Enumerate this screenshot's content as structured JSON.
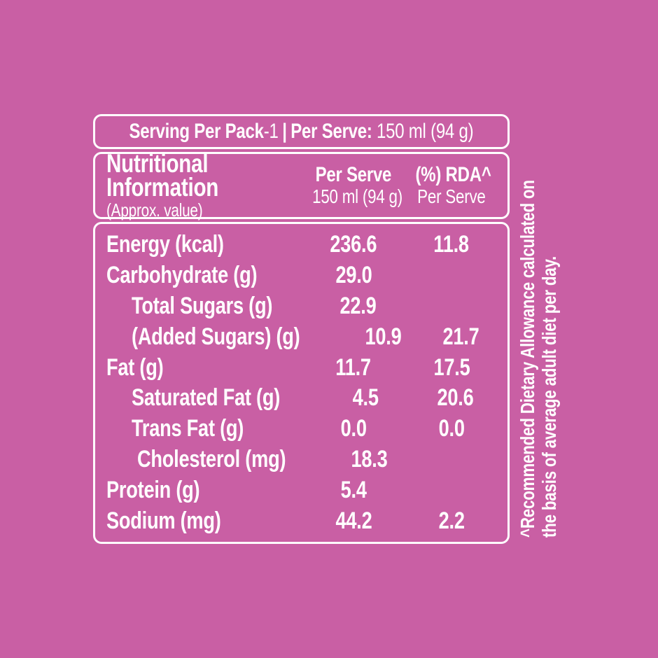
{
  "colors": {
    "background": "#c95fa4",
    "text": "#ffffff",
    "border": "#ffffff"
  },
  "banner": {
    "pack_label": "Serving Per Pack",
    "pack_value": "-1",
    "separator": "|",
    "serve_label": "Per Serve:",
    "serve_value": "150 ml (94 g)"
  },
  "header": {
    "title_line1": "Nutritional",
    "title_line2": "Information",
    "subtitle": "(Approx. value)",
    "per_serve_line1": "Per Serve",
    "per_serve_line2": "150 ml (94 g)",
    "rda_line1": "(%) RDA^",
    "rda_line2": "Per Serve"
  },
  "rows": [
    {
      "label": "Energy (kcal)",
      "per_serve": "236.6",
      "rda": "11.8",
      "indent": 0
    },
    {
      "label": "Carbohydrate (g)",
      "per_serve": "29.0",
      "rda": "",
      "indent": 0
    },
    {
      "label": "Total Sugars (g)",
      "per_serve": "22.9",
      "rda": "",
      "indent": 1
    },
    {
      "label": "(Added Sugars) (g)",
      "per_serve": "10.9",
      "rda": "21.7",
      "indent": 1
    },
    {
      "label": "Fat (g)",
      "per_serve": "11.7",
      "rda": "17.5",
      "indent": 0
    },
    {
      "label": "Saturated Fat (g)",
      "per_serve": "4.5",
      "rda": "20.6",
      "indent": 1
    },
    {
      "label": "Trans Fat (g)",
      "per_serve": "0.0",
      "rda": "0.0",
      "indent": 1
    },
    {
      "label": "Cholesterol (mg)",
      "per_serve": "18.3",
      "rda": "",
      "indent": 2
    },
    {
      "label": "Protein (g)",
      "per_serve": "5.4",
      "rda": "",
      "indent": 0
    },
    {
      "label": "Sodium (mg)",
      "per_serve": "44.2",
      "rda": "2.2",
      "indent": 0
    }
  ],
  "footnote": {
    "line1": "^Recommended Dietary Allowance calculated on",
    "line2": "the basis of average adult diet per day."
  }
}
